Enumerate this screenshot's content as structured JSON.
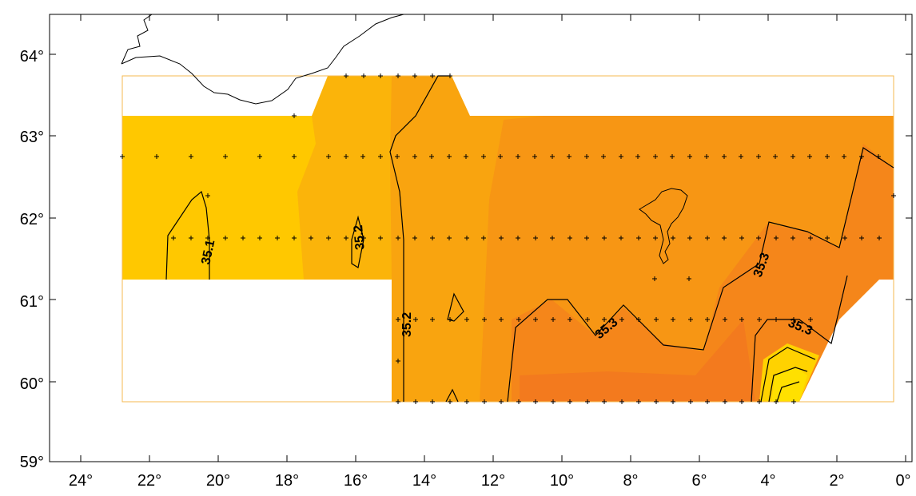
{
  "map": {
    "longitude_labels": [
      "24°",
      "22°",
      "20°",
      "18°",
      "16°",
      "14°",
      "12°",
      "10°",
      "8°",
      "6°",
      "4°",
      "2°",
      "0°"
    ],
    "latitude_labels": [
      "59°",
      "60°",
      "61°",
      "62°",
      "63°",
      "64°"
    ],
    "contour_labels": [
      "35.1",
      "35.2",
      "35.2",
      "35.3",
      "35.3",
      "35.3"
    ],
    "colors": {
      "level_1": "#FFC800",
      "level_2": "#FBB40A",
      "level_3": "#F9A40F",
      "level_4": "#F79614",
      "level_5": "#F5861A",
      "level_6": "#F37A1E",
      "hotspot_1": "#FFE000",
      "hotspot_2": "#FFD200",
      "grid_outline": "#F5B950"
    }
  }
}
